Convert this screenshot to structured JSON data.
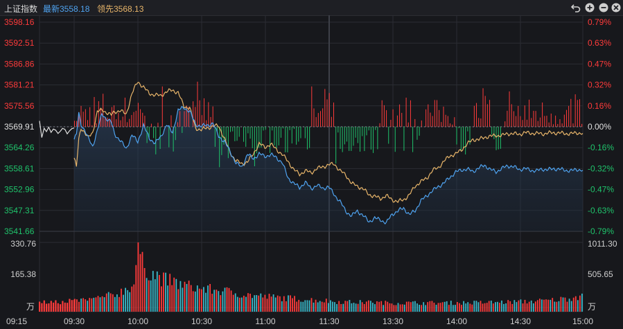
{
  "header": {
    "index_name": "上证指数",
    "latest": "最新3558.18",
    "leading": "领先3568.13",
    "icons": [
      "undo-icon",
      "zoom-in-icon",
      "zoom-out-icon",
      "close-icon"
    ]
  },
  "colors": {
    "up": "#ff3b3b",
    "down": "#1fc36b",
    "flat": "#e0e0e0",
    "main_line": "#4fa3f0",
    "leading_line": "#e8b56a",
    "grid": "#2b2d33"
  },
  "chart_data": [
    {
      "type": "line",
      "ylim": [
        3541.66,
        3598.16
      ],
      "prev_close": 3569.91,
      "y_ticks_left": [
        "3598.16",
        "3592.51",
        "3586.86",
        "3581.21",
        "3575.56",
        "3569.91",
        "3564.26",
        "3558.61",
        "3552.96",
        "3547.31",
        "3541.66"
      ],
      "y_ticks_right": [
        "0.79%",
        "0.63%",
        "0.47%",
        "0.32%",
        "0.16%",
        "0.00%",
        "-0.16%",
        "-0.32%",
        "-0.47%",
        "-0.63%",
        "-0.79%"
      ],
      "x_ticks": [
        "09:15",
        "09:30",
        "10:00",
        "10:30",
        "11:00",
        "11:30",
        "13:30",
        "14:00",
        "14:30",
        "15:00"
      ],
      "auction": {
        "x": [
          0,
          1,
          2,
          3,
          4,
          5,
          6,
          7,
          8,
          9,
          10,
          11,
          12,
          13,
          14,
          15
        ],
        "values": [
          3571.5,
          3567.0,
          3569.5,
          3568.6,
          3569.8,
          3568.4,
          3569.3,
          3569.0,
          3568.1,
          3568.7,
          3569.5,
          3569.2,
          3568.0,
          3568.8,
          3569.4,
          3569.6
        ]
      },
      "series": [
        {
          "key": "main",
          "points": [
            [
              0,
              3566.5
            ],
            [
              2,
              3567.8
            ],
            [
              4,
              3573.5
            ],
            [
              6,
              3570.6
            ],
            [
              9,
              3569.1
            ],
            [
              12,
              3566.9
            ],
            [
              16,
              3564.6
            ],
            [
              20,
              3568.9
            ],
            [
              24,
              3573.3
            ],
            [
              28,
              3572.1
            ],
            [
              32,
              3571.2
            ],
            [
              35,
              3567.9
            ],
            [
              40,
              3566.2
            ],
            [
              45,
              3563.9
            ],
            [
              50,
              3567.7
            ],
            [
              55,
              3565.8
            ],
            [
              60,
              3570.3
            ],
            [
              65,
              3566.8
            ],
            [
              70,
              3565.5
            ],
            [
              75,
              3567.2
            ],
            [
              80,
              3570.5
            ],
            [
              85,
              3568.3
            ],
            [
              90,
              3574.4
            ],
            [
              95,
              3575.1
            ],
            [
              100,
              3574.1
            ],
            [
              105,
              3570.5
            ],
            [
              110,
              3570.1
            ],
            [
              115,
              3570.3
            ],
            [
              120,
              3570.8
            ],
            [
              125,
              3567.4
            ],
            [
              130,
              3565.9
            ],
            [
              135,
              3563.2
            ],
            [
              140,
              3560.1
            ],
            [
              145,
              3559.0
            ],
            [
              150,
              3562.5
            ],
            [
              155,
              3561.3
            ],
            [
              160,
              3562.6
            ],
            [
              165,
              3561.9
            ],
            [
              170,
              3562.4
            ],
            [
              175,
              3561.6
            ],
            [
              180,
              3560.2
            ],
            [
              185,
              3556.1
            ],
            [
              190,
              3554.6
            ],
            [
              195,
              3553.5
            ],
            [
              200,
              3554.9
            ],
            [
              205,
              3553.2
            ],
            [
              210,
              3554.1
            ],
            [
              215,
              3553.3
            ],
            [
              220,
              3553.7
            ],
            [
              225,
              3551.6
            ],
            [
              230,
              3549.7
            ],
            [
              235,
              3547.1
            ],
            [
              240,
              3545.8
            ],
            [
              245,
              3547.2
            ],
            [
              250,
              3545.9
            ],
            [
              255,
              3544.3
            ],
            [
              260,
              3545.2
            ],
            [
              265,
              3544.8
            ],
            [
              270,
              3543.9
            ],
            [
              275,
              3546.3
            ],
            [
              280,
              3547.1
            ],
            [
              285,
              3548.0
            ],
            [
              290,
              3546.1
            ],
            [
              295,
              3547.3
            ],
            [
              300,
              3549.9
            ],
            [
              305,
              3551.3
            ],
            [
              310,
              3552.6
            ],
            [
              315,
              3553.8
            ],
            [
              320,
              3554.7
            ],
            [
              325,
              3556.3
            ],
            [
              330,
              3557.6
            ],
            [
              335,
              3558.3
            ],
            [
              340,
              3558.4
            ],
            [
              345,
              3557.9
            ],
            [
              350,
              3558.7
            ],
            [
              355,
              3559.6
            ],
            [
              360,
              3558.3
            ],
            [
              365,
              3557.8
            ],
            [
              370,
              3558.6
            ],
            [
              375,
              3559.4
            ],
            [
              380,
              3559.1
            ],
            [
              385,
              3558.4
            ],
            [
              390,
              3558.6
            ],
            [
              395,
              3558.2
            ],
            [
              400,
              3558.0
            ],
            [
              405,
              3558.5
            ],
            [
              410,
              3558.3
            ],
            [
              415,
              3558.6
            ],
            [
              420,
              3558.4
            ],
            [
              425,
              3558.2
            ],
            [
              430,
              3558.0
            ],
            [
              435,
              3558.4
            ],
            [
              440,
              3558.18
            ]
          ]
        },
        {
          "key": "leading",
          "points": [
            [
              0,
              3561.5
            ],
            [
              2,
              3559.0
            ],
            [
              4,
              3566.5
            ],
            [
              6,
              3569.6
            ],
            [
              9,
              3568.5
            ],
            [
              12,
              3566.9
            ],
            [
              16,
              3568.3
            ],
            [
              20,
              3574.0
            ],
            [
              24,
              3574.4
            ],
            [
              28,
              3573.8
            ],
            [
              32,
              3573.1
            ],
            [
              35,
              3573.9
            ],
            [
              40,
              3574.3
            ],
            [
              45,
              3573.2
            ],
            [
              50,
              3578.9
            ],
            [
              55,
              3582.1
            ],
            [
              60,
              3580.6
            ],
            [
              65,
              3578.9
            ],
            [
              70,
              3578.5
            ],
            [
              75,
              3578.3
            ],
            [
              80,
              3579.4
            ],
            [
              85,
              3579.8
            ],
            [
              90,
              3579.1
            ],
            [
              95,
              3575.4
            ],
            [
              100,
              3575.0
            ],
            [
              105,
              3569.5
            ],
            [
              110,
              3569.1
            ],
            [
              115,
              3569.6
            ],
            [
              120,
              3570.0
            ],
            [
              125,
              3570.2
            ],
            [
              130,
              3566.7
            ],
            [
              135,
              3562.9
            ],
            [
              140,
              3560.7
            ],
            [
              145,
              3559.9
            ],
            [
              150,
              3560.4
            ],
            [
              155,
              3562.6
            ],
            [
              160,
              3565.3
            ],
            [
              165,
              3564.4
            ],
            [
              170,
              3565.2
            ],
            [
              175,
              3563.8
            ],
            [
              180,
              3562.4
            ],
            [
              185,
              3560.6
            ],
            [
              190,
              3558.3
            ],
            [
              195,
              3557.1
            ],
            [
              200,
              3558.0
            ],
            [
              205,
              3557.5
            ],
            [
              210,
              3558.6
            ],
            [
              215,
              3559.1
            ],
            [
              220,
              3559.6
            ],
            [
              225,
              3559.9
            ],
            [
              230,
              3558.0
            ],
            [
              235,
              3556.9
            ],
            [
              240,
              3554.6
            ],
            [
              245,
              3553.9
            ],
            [
              250,
              3553.1
            ],
            [
              255,
              3551.6
            ],
            [
              260,
              3551.1
            ],
            [
              265,
              3550.5
            ],
            [
              270,
              3551.3
            ],
            [
              275,
              3550.2
            ],
            [
              280,
              3549.7
            ],
            [
              285,
              3550.2
            ],
            [
              290,
              3551.5
            ],
            [
              295,
              3553.9
            ],
            [
              300,
              3555.1
            ],
            [
              305,
              3556.0
            ],
            [
              310,
              3558.1
            ],
            [
              315,
              3558.9
            ],
            [
              320,
              3560.6
            ],
            [
              325,
              3562.1
            ],
            [
              330,
              3562.5
            ],
            [
              335,
              3563.7
            ],
            [
              340,
              3565.2
            ],
            [
              345,
              3566.5
            ],
            [
              350,
              3566.4
            ],
            [
              355,
              3567.1
            ],
            [
              360,
              3567.3
            ],
            [
              365,
              3567.6
            ],
            [
              370,
              3567.5
            ],
            [
              375,
              3568.1
            ],
            [
              380,
              3568.0
            ],
            [
              385,
              3567.9
            ],
            [
              390,
              3568.3
            ],
            [
              395,
              3568.2
            ],
            [
              400,
              3568.1
            ],
            [
              405,
              3568.0
            ],
            [
              410,
              3568.2
            ],
            [
              415,
              3568.3
            ],
            [
              420,
              3568.2
            ],
            [
              425,
              3568.1
            ],
            [
              430,
              3568.0
            ],
            [
              435,
              3568.3
            ],
            [
              440,
              3568.13
            ]
          ]
        }
      ]
    },
    {
      "type": "bar",
      "ylim": [
        0,
        330.76
      ],
      "y_ticks_left": [
        "330.76",
        "165.38"
      ],
      "y_ticks_right": [
        "1011.30",
        "505.65"
      ],
      "unit": "万",
      "bar_count": 241,
      "volume_profile": [
        [
          0,
          52
        ],
        [
          10,
          62
        ],
        [
          20,
          85
        ],
        [
          28,
          130
        ],
        [
          30,
          330.76
        ],
        [
          32,
          230
        ],
        [
          36,
          185
        ],
        [
          42,
          155
        ],
        [
          50,
          130
        ],
        [
          60,
          110
        ],
        [
          70,
          100
        ],
        [
          80,
          82
        ],
        [
          90,
          72
        ],
        [
          100,
          65
        ],
        [
          110,
          58
        ],
        [
          119,
          52
        ],
        [
          120,
          50
        ],
        [
          130,
          46
        ],
        [
          150,
          42
        ],
        [
          170,
          42
        ],
        [
          190,
          43
        ],
        [
          205,
          46
        ],
        [
          215,
          49
        ],
        [
          225,
          54
        ],
        [
          232,
          62
        ],
        [
          238,
          72
        ],
        [
          240,
          108
        ]
      ],
      "spikes": [
        [
          140,
          52
        ]
      ]
    }
  ]
}
